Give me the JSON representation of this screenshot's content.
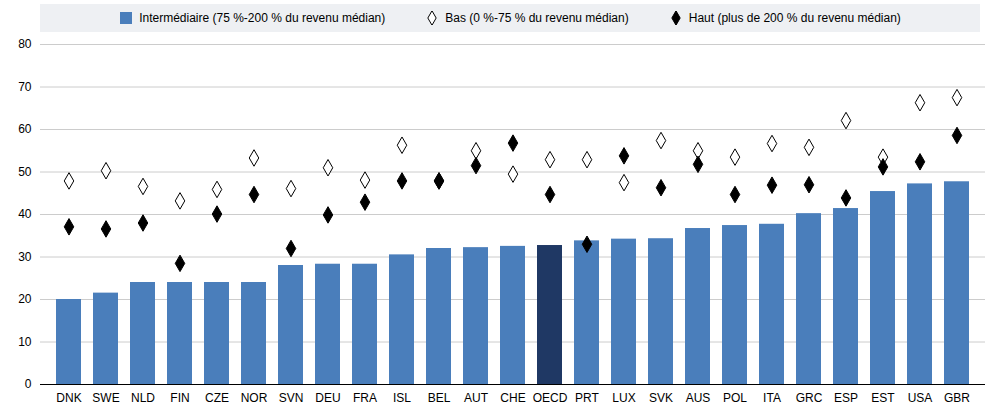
{
  "chart_data": {
    "type": "bar",
    "categories": [
      "DNK",
      "SWE",
      "NLD",
      "FIN",
      "CZE",
      "NOR",
      "SVN",
      "DEU",
      "FRA",
      "ISL",
      "BEL",
      "AUT",
      "CHE",
      "OECD",
      "PRT",
      "LUX",
      "SVK",
      "AUS",
      "POL",
      "ITA",
      "GRC",
      "ESP",
      "EST",
      "USA",
      "GBR"
    ],
    "series": [
      {
        "name": "Intermédiaire (75 %-200 % du revenu médian)",
        "type": "bar",
        "colors": [
          "#4a7ebb",
          "#4a7ebb",
          "#4a7ebb",
          "#4a7ebb",
          "#4a7ebb",
          "#4a7ebb",
          "#4a7ebb",
          "#4a7ebb",
          "#4a7ebb",
          "#4a7ebb",
          "#4a7ebb",
          "#4a7ebb",
          "#4a7ebb",
          "#1f3864",
          "#4a7ebb",
          "#4a7ebb",
          "#4a7ebb",
          "#4a7ebb",
          "#4a7ebb",
          "#4a7ebb",
          "#4a7ebb",
          "#4a7ebb",
          "#4a7ebb",
          "#4a7ebb",
          "#4a7ebb"
        ],
        "values": [
          20,
          21.5,
          24,
          24,
          24,
          24,
          28,
          28.3,
          28.3,
          30.5,
          32,
          32.2,
          32.5,
          32.7,
          33.8,
          34.2,
          34.3,
          36.7,
          37.4,
          37.7,
          40.2,
          41.4,
          45.4,
          47.2,
          47.7
        ]
      },
      {
        "name": "Bas (0 %-75 % du revenu médian)",
        "type": "scatter",
        "marker": "diamond-open",
        "color": "#000000",
        "values": [
          47.9,
          50.3,
          46.6,
          43.2,
          45.9,
          53.3,
          46.1,
          51.0,
          48.1,
          56.3,
          47.9,
          55.0,
          49.5,
          52.9,
          52.9,
          47.5,
          57.4,
          55.0,
          53.5,
          56.7,
          55.8,
          62.1,
          53.5,
          66.3,
          67.5
        ]
      },
      {
        "name": "Haut (plus de 200 % du revenu médian)",
        "type": "scatter",
        "marker": "diamond",
        "color": "#000000",
        "values": [
          37.1,
          36.6,
          38.0,
          28.5,
          40.1,
          44.7,
          32.0,
          39.9,
          42.9,
          47.9,
          47.9,
          51.5,
          56.8,
          44.7,
          33.0,
          53.8,
          46.3,
          51.8,
          44.7,
          46.9,
          47.0,
          43.9,
          51.2,
          52.4,
          58.6
        ]
      }
    ],
    "ylim": [
      0,
      80
    ],
    "yticks": [
      0,
      10,
      20,
      30,
      40,
      50,
      60,
      70,
      80
    ],
    "grid": true
  }
}
